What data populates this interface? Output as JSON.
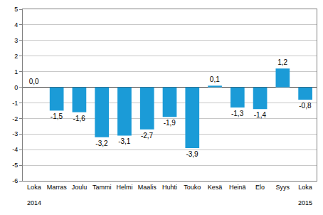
{
  "chart_data": {
    "type": "bar",
    "categories": [
      "Loka",
      "Marras",
      "Joulu",
      "Tammi",
      "Helmi",
      "Maalis",
      "Huhti",
      "Touko",
      "Kesä",
      "Heinä",
      "Elo",
      "Syys",
      "Loka"
    ],
    "values": [
      0.0,
      -1.5,
      -1.6,
      -3.2,
      -3.1,
      -2.7,
      -1.9,
      -3.9,
      0.1,
      -1.3,
      -1.4,
      1.2,
      -0.8
    ],
    "value_labels": [
      "0,0",
      "-1,5",
      "-1,6",
      "-3,2",
      "-3,1",
      "-2,7",
      "-1,9",
      "-3,9",
      "0,1",
      "-1,3",
      "-1,4",
      "1,2",
      "-0,8"
    ],
    "color": "#1b9bd7",
    "data_labels": true,
    "ylim": [
      -6,
      5
    ],
    "yticks": [
      -6,
      -5,
      -4,
      -3,
      -2,
      -1,
      0,
      1,
      2,
      3,
      4,
      5
    ],
    "grid": true,
    "annotations": [
      {
        "x": 0,
        "text": "2014"
      },
      {
        "x": 12,
        "text": "2015"
      }
    ]
  }
}
